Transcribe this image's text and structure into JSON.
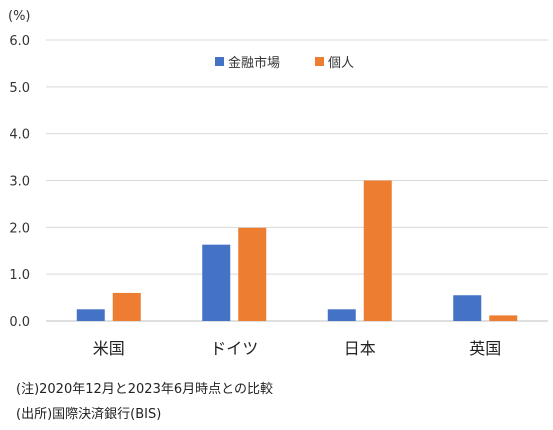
{
  "chart_data": {
    "type": "bar",
    "unit_label": "(%)",
    "categories": [
      "米国",
      "ドイツ",
      "日本",
      "英国"
    ],
    "series": [
      {
        "name": "金融市場",
        "color": "#4472C4",
        "values": [
          0.25,
          1.63,
          0.25,
          0.55
        ]
      },
      {
        "name": "個人",
        "color": "#ED7D31",
        "values": [
          0.6,
          1.99,
          3.0,
          0.12
        ]
      }
    ],
    "ylim": [
      0,
      6
    ],
    "yticks": [
      "0.0",
      "1.0",
      "2.0",
      "3.0",
      "4.0",
      "5.0",
      "6.0"
    ],
    "grid": true,
    "legend": "top-center"
  },
  "notes": {
    "note1": "(注)2020年12月と2023年6月時点との比較",
    "note2": "(出所)国際決済銀行(BIS)"
  }
}
